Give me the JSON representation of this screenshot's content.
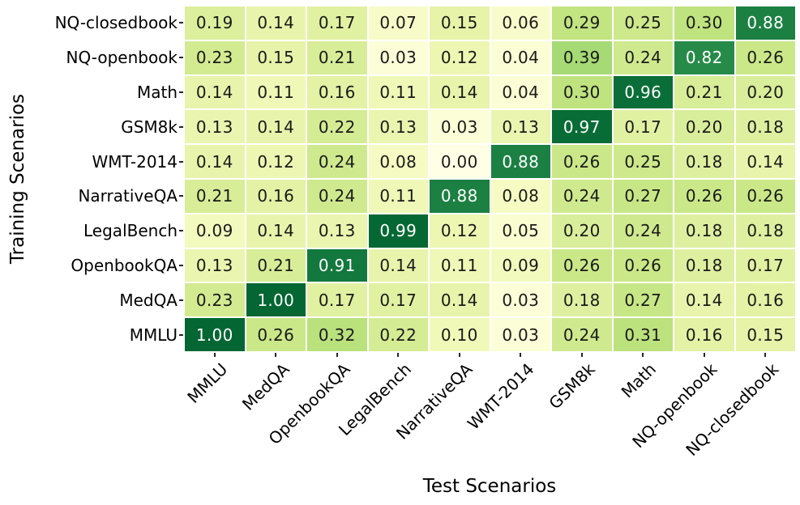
{
  "chart_data": {
    "type": "heatmap",
    "xlabel": "Test Scenarios",
    "ylabel": "Training Scenarios",
    "x_categories": [
      "MMLU",
      "MedQA",
      "OpenbookQA",
      "LegalBench",
      "NarrativeQA",
      "WMT-2014",
      "GSM8k",
      "Math",
      "NQ-openbook",
      "NQ-closedbook"
    ],
    "y_categories": [
      "NQ-closedbook",
      "NQ-openbook",
      "Math",
      "GSM8k",
      "WMT-2014",
      "NarrativeQA",
      "LegalBench",
      "OpenbookQA",
      "MedQA",
      "MMLU"
    ],
    "values": [
      [
        0.19,
        0.14,
        0.17,
        0.07,
        0.15,
        0.06,
        0.29,
        0.25,
        0.3,
        0.88
      ],
      [
        0.23,
        0.15,
        0.21,
        0.03,
        0.12,
        0.04,
        0.39,
        0.24,
        0.82,
        0.26
      ],
      [
        0.14,
        0.11,
        0.16,
        0.11,
        0.14,
        0.04,
        0.3,
        0.96,
        0.21,
        0.2
      ],
      [
        0.13,
        0.14,
        0.22,
        0.13,
        0.03,
        0.13,
        0.97,
        0.17,
        0.2,
        0.18
      ],
      [
        0.14,
        0.12,
        0.24,
        0.08,
        0.0,
        0.88,
        0.26,
        0.25,
        0.18,
        0.14
      ],
      [
        0.21,
        0.16,
        0.24,
        0.11,
        0.88,
        0.08,
        0.24,
        0.27,
        0.26,
        0.26
      ],
      [
        0.09,
        0.14,
        0.13,
        0.99,
        0.12,
        0.05,
        0.2,
        0.24,
        0.18,
        0.18
      ],
      [
        0.13,
        0.21,
        0.91,
        0.14,
        0.11,
        0.09,
        0.26,
        0.26,
        0.18,
        0.17
      ],
      [
        0.23,
        1.0,
        0.17,
        0.17,
        0.14,
        0.03,
        0.18,
        0.27,
        0.14,
        0.16
      ],
      [
        1.0,
        0.26,
        0.32,
        0.22,
        0.1,
        0.03,
        0.24,
        0.31,
        0.16,
        0.15
      ]
    ],
    "value_decimals": 2,
    "value_range": [
      0.0,
      1.0
    ],
    "grid": false,
    "legend": "none",
    "colormap": {
      "name": "YlGn",
      "stops": [
        [
          0.0,
          "#ffffe5"
        ],
        [
          0.05,
          "#fafdd0"
        ],
        [
          0.1,
          "#f1f9b9"
        ],
        [
          0.15,
          "#e6f3a8"
        ],
        [
          0.2,
          "#d9ee9a"
        ],
        [
          0.25,
          "#cde98b"
        ],
        [
          0.3,
          "#bfe37e"
        ],
        [
          0.4,
          "#a2d973"
        ],
        [
          0.5,
          "#7fc866"
        ],
        [
          0.6,
          "#5ab55b"
        ],
        [
          0.7,
          "#38a053"
        ],
        [
          0.8,
          "#2a8f4a"
        ],
        [
          0.88,
          "#1b8042"
        ],
        [
          0.92,
          "#0f753b"
        ],
        [
          1.0,
          "#036633"
        ]
      ]
    },
    "annotation_color_dark": "#1a1a1a",
    "annotation_color_light": "#ffffff",
    "light_text_threshold": 0.75,
    "tick_color": "#262626"
  }
}
